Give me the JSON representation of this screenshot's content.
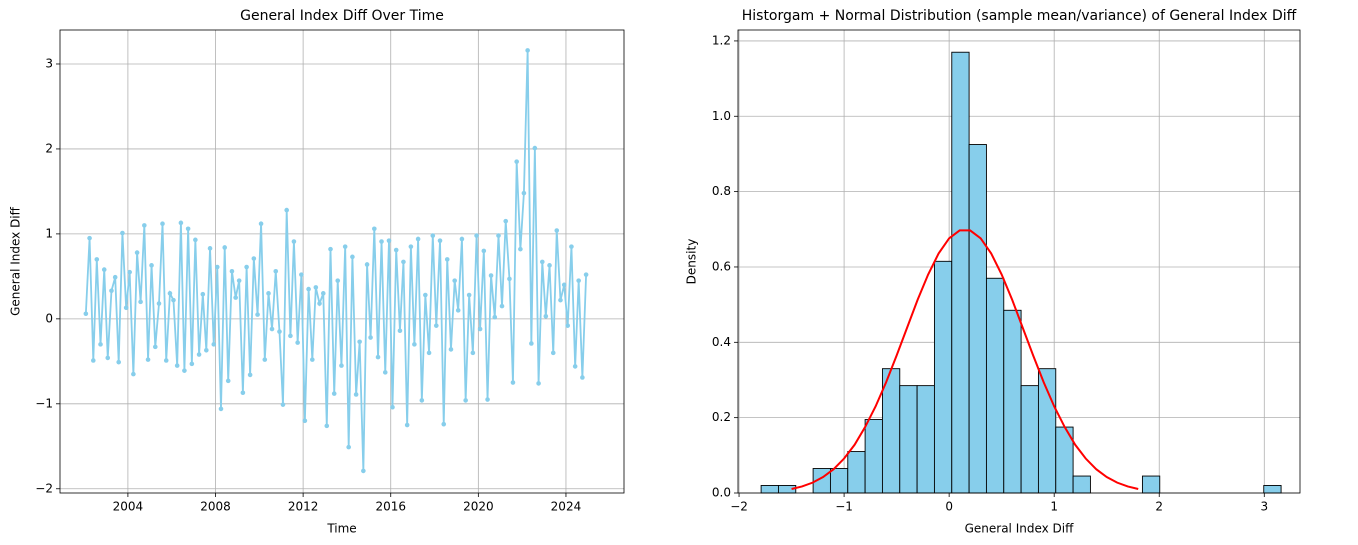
{
  "chart_data": [
    {
      "type": "line",
      "title": "General Index Diff Over Time",
      "x_label": "Time",
      "y_label": "General Index Diff",
      "color": "#87ceeb",
      "grid": true,
      "xlim": [
        2000.9,
        2026.65
      ],
      "xticks": [
        2004,
        2008,
        2012,
        2016,
        2020,
        2024
      ],
      "ylim": [
        -2.05,
        3.4
      ],
      "yticks": [
        {
          "value": -2,
          "label": "−2"
        },
        {
          "value": -1,
          "label": "−1"
        },
        0,
        1,
        2,
        3
      ],
      "x": [
        2002.08,
        2002.25,
        2002.42,
        2002.58,
        2002.75,
        2002.92,
        2003.08,
        2003.25,
        2003.42,
        2003.58,
        2003.75,
        2003.92,
        2004.08,
        2004.25,
        2004.42,
        2004.58,
        2004.75,
        2004.92,
        2005.08,
        2005.25,
        2005.42,
        2005.58,
        2005.75,
        2005.92,
        2006.08,
        2006.25,
        2006.42,
        2006.58,
        2006.75,
        2006.92,
        2007.08,
        2007.25,
        2007.42,
        2007.58,
        2007.75,
        2007.92,
        2008.08,
        2008.25,
        2008.42,
        2008.58,
        2008.75,
        2008.92,
        2009.08,
        2009.25,
        2009.42,
        2009.58,
        2009.75,
        2009.92,
        2010.08,
        2010.25,
        2010.42,
        2010.58,
        2010.75,
        2010.92,
        2011.08,
        2011.25,
        2011.42,
        2011.58,
        2011.75,
        2011.92,
        2012.08,
        2012.25,
        2012.42,
        2012.58,
        2012.75,
        2012.92,
        2013.08,
        2013.25,
        2013.42,
        2013.58,
        2013.75,
        2013.92,
        2014.08,
        2014.25,
        2014.42,
        2014.58,
        2014.75,
        2014.92,
        2015.08,
        2015.25,
        2015.42,
        2015.58,
        2015.75,
        2015.92,
        2016.08,
        2016.25,
        2016.42,
        2016.58,
        2016.75,
        2016.92,
        2017.08,
        2017.25,
        2017.42,
        2017.58,
        2017.75,
        2017.92,
        2018.08,
        2018.25,
        2018.42,
        2018.58,
        2018.75,
        2018.92,
        2019.08,
        2019.25,
        2019.42,
        2019.58,
        2019.75,
        2019.92,
        2020.08,
        2020.25,
        2020.42,
        2020.58,
        2020.75,
        2020.92,
        2021.08,
        2021.25,
        2021.42,
        2021.58,
        2021.75,
        2021.92,
        2022.08,
        2022.25,
        2022.42,
        2022.58,
        2022.75,
        2022.92,
        2023.08,
        2023.25,
        2023.42,
        2023.58,
        2023.75,
        2023.92,
        2024.08,
        2024.25,
        2024.42,
        2024.58,
        2024.75,
        2024.92
      ],
      "values": [
        0.06,
        0.95,
        -0.49,
        0.7,
        -0.3,
        0.58,
        -0.46,
        0.33,
        0.49,
        -0.51,
        1.01,
        0.13,
        0.55,
        -0.65,
        0.78,
        0.2,
        1.1,
        -0.48,
        0.63,
        -0.33,
        0.18,
        1.12,
        -0.49,
        0.3,
        0.22,
        -0.55,
        1.13,
        -0.61,
        1.06,
        -0.53,
        0.93,
        -0.42,
        0.29,
        -0.37,
        0.83,
        -0.3,
        0.61,
        -1.06,
        0.84,
        -0.73,
        0.56,
        0.25,
        0.45,
        -0.87,
        0.61,
        -0.66,
        0.71,
        0.05,
        1.12,
        -0.48,
        0.3,
        -0.12,
        0.56,
        -0.15,
        -1.01,
        1.28,
        -0.2,
        0.91,
        -0.28,
        0.52,
        -1.2,
        0.35,
        -0.48,
        0.37,
        0.18,
        0.3,
        -1.26,
        0.82,
        -0.88,
        0.45,
        -0.55,
        0.85,
        -1.51,
        0.73,
        -0.89,
        -0.27,
        -1.79,
        0.64,
        -0.22,
        1.06,
        -0.45,
        0.91,
        -0.63,
        0.92,
        -1.04,
        0.81,
        -0.14,
        0.67,
        -1.25,
        0.85,
        -0.3,
        0.94,
        -0.96,
        0.28,
        -0.4,
        0.98,
        -0.08,
        0.92,
        -1.24,
        0.7,
        -0.36,
        0.45,
        0.1,
        0.94,
        -0.96,
        0.28,
        -0.4,
        0.98,
        -0.12,
        0.8,
        -0.95,
        0.51,
        0.02,
        0.98,
        0.15,
        1.15,
        0.47,
        -0.75,
        1.85,
        0.82,
        1.48,
        3.16,
        -0.29,
        2.01,
        -0.76,
        0.67,
        0.03,
        0.63,
        -0.4,
        1.04,
        0.22,
        0.4,
        -0.08,
        0.85,
        -0.56,
        0.45,
        -0.69,
        0.52
      ]
    },
    {
      "type": "histogram",
      "title": "Historgam + Normal Distribution (sample mean/variance) of General Index Diff",
      "x_label": "General Index Diff",
      "y_label": "Density",
      "color": "#87ceeb",
      "edgecolor": "#000000",
      "grid": true,
      "xlim": [
        -2.01,
        3.34
      ],
      "xticks": [
        {
          "value": -2,
          "label": "−2"
        },
        {
          "value": -1,
          "label": "−1"
        },
        0,
        1,
        2,
        3
      ],
      "ylim": [
        0,
        1.229
      ],
      "yticks": [
        {
          "value": 0,
          "label": "0.0"
        },
        0.2,
        0.4,
        0.6,
        0.8,
        {
          "value": 1,
          "label": "1.0"
        },
        1.2
      ],
      "bins": [
        -1.79,
        -1.625,
        -1.46,
        -1.295,
        -1.13,
        -0.965,
        -0.8,
        -0.635,
        -0.47,
        -0.305,
        -0.14,
        0.025,
        0.19,
        0.355,
        0.52,
        0.685,
        0.85,
        1.015,
        1.18,
        1.345,
        1.51,
        1.675,
        1.84,
        2.005,
        2.17,
        2.335,
        2.5,
        2.665,
        2.83,
        2.995,
        3.16
      ],
      "values": [
        0.02,
        0.02,
        0,
        0.065,
        0.065,
        0.11,
        0.195,
        0.33,
        0.285,
        0.285,
        0.615,
        1.17,
        0.925,
        0.57,
        0.485,
        0.285,
        0.33,
        0.175,
        0.045,
        0,
        0,
        0,
        0.045,
        0,
        0,
        0,
        0,
        0,
        0,
        0.02
      ],
      "curve": {
        "color": "#ff0000",
        "x": [
          -1.5,
          -1.4,
          -1.3,
          -1.2,
          -1.1,
          -1.0,
          -0.9,
          -0.8,
          -0.7,
          -0.6,
          -0.5,
          -0.4,
          -0.3,
          -0.2,
          -0.1,
          0.0,
          0.1,
          0.2,
          0.3,
          0.4,
          0.5,
          0.6,
          0.7,
          0.8,
          0.9,
          1.0,
          1.1,
          1.2,
          1.3,
          1.4,
          1.5,
          1.6,
          1.7,
          1.8
        ],
        "values": [
          0.0106,
          0.0174,
          0.0275,
          0.0424,
          0.0632,
          0.0915,
          0.128,
          0.175,
          0.23,
          0.294,
          0.365,
          0.439,
          0.513,
          0.58,
          0.636,
          0.676,
          0.697,
          0.697,
          0.676,
          0.636,
          0.58,
          0.513,
          0.439,
          0.365,
          0.294,
          0.23,
          0.175,
          0.128,
          0.0915,
          0.0632,
          0.0424,
          0.0275,
          0.0174,
          0.0106
        ]
      }
    }
  ]
}
